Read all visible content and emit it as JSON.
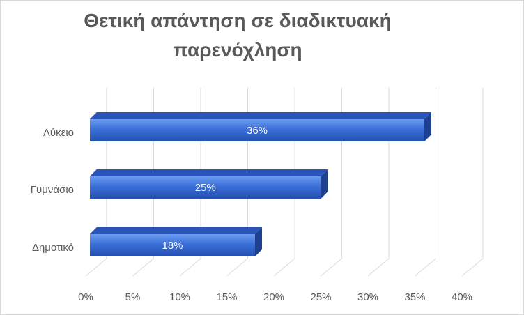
{
  "chart_data": {
    "type": "bar",
    "orientation": "horizontal",
    "title": "Θετική απάντηση σε διαδικτυακή παρενόχληση",
    "categories": [
      "Λύκειο",
      "Γυμνάσιο",
      "Δημοτικό"
    ],
    "values": [
      36,
      25,
      18
    ],
    "data_labels": [
      "36%",
      "25%",
      "18%"
    ],
    "xlim": [
      0,
      40
    ],
    "x_ticks": [
      0,
      5,
      10,
      15,
      20,
      25,
      30,
      35,
      40
    ],
    "x_tick_labels": [
      "0%",
      "5%",
      "10%",
      "15%",
      "20%",
      "25%",
      "30%",
      "35%",
      "40%"
    ],
    "grid": true,
    "legend": "none",
    "bar_color": "#3a6fd8",
    "bar_side_color": "#1f3f8f",
    "bar_top_color": "#2a55b8"
  }
}
